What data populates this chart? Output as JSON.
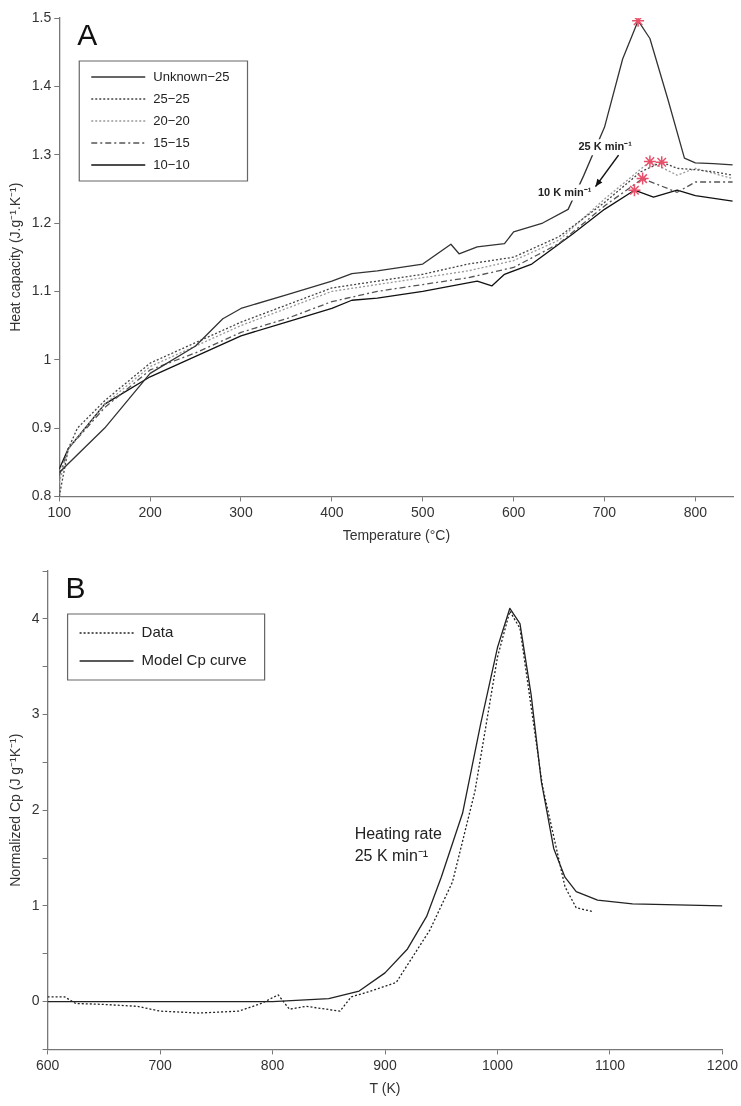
{
  "chart_data": [
    {
      "type": "line",
      "title": "A",
      "xlabel": "Temperature (°C)",
      "ylabel": "Heat capacity (J.g⁻¹.K⁻¹)",
      "xlim": [
        100,
        842
      ],
      "xticks": [
        100,
        200,
        300,
        400,
        500,
        600,
        700,
        800
      ],
      "ylim": [
        0.8,
        1.5
      ],
      "yticks": [
        0.8,
        0.9,
        1,
        1.1,
        1.2,
        1.3,
        1.4,
        1.5
      ],
      "legend": "top left",
      "marker": "none",
      "grid": false,
      "annotations": [
        "25 K min⁻¹",
        "10 K min⁻¹"
      ],
      "series": [
        {
          "name": "Unknown−25",
          "color": "#333333",
          "line_style": "solid",
          "x": [
            100,
            150,
            200,
            250,
            280,
            300,
            350,
            400,
            422,
            450,
            500,
            531,
            540,
            560,
            590,
            600,
            632,
            660,
            677,
            700,
            720,
            737,
            750,
            770,
            788,
            800,
            820,
            841
          ],
          "values": [
            0.835,
            0.9,
            0.98,
            1.02,
            1.06,
            1.075,
            1.095,
            1.115,
            1.126,
            1.13,
            1.14,
            1.169,
            1.155,
            1.165,
            1.17,
            1.187,
            1.2,
            1.22,
            1.269,
            1.34,
            1.44,
            1.496,
            1.47,
            1.38,
            1.295,
            1.288,
            1.287,
            1.285
          ]
        },
        {
          "name": "25−25",
          "color": "#444444",
          "line_style": "dotted",
          "x": [
            100,
            110,
            120,
            150,
            200,
            250,
            300,
            350,
            400,
            450,
            500,
            550,
            600,
            650,
            700,
            740,
            763,
            780,
            800,
            820,
            841
          ],
          "values": [
            0.8,
            0.87,
            0.9,
            0.94,
            0.995,
            1.025,
            1.055,
            1.08,
            1.105,
            1.115,
            1.125,
            1.14,
            1.15,
            1.18,
            1.23,
            1.275,
            1.289,
            1.28,
            1.278,
            1.275,
            1.27
          ]
        },
        {
          "name": "20−20",
          "color": "#999999",
          "line_style": "dotted",
          "x": [
            100,
            110,
            150,
            200,
            250,
            300,
            350,
            400,
            450,
            500,
            550,
            600,
            650,
            700,
            750,
            780,
            800,
            841
          ],
          "values": [
            0.82,
            0.87,
            0.935,
            0.99,
            1.02,
            1.05,
            1.075,
            1.1,
            1.11,
            1.12,
            1.13,
            1.145,
            1.175,
            1.235,
            1.29,
            1.27,
            1.28,
            1.265
          ]
        },
        {
          "name": "15−15",
          "color": "#555555",
          "line_style": "dashed",
          "x": [
            100,
            110,
            150,
            200,
            250,
            300,
            350,
            400,
            450,
            500,
            550,
            600,
            650,
            700,
            742,
            780,
            800,
            841
          ],
          "values": [
            0.83,
            0.87,
            0.93,
            0.985,
            1.01,
            1.04,
            1.06,
            1.085,
            1.1,
            1.11,
            1.12,
            1.135,
            1.17,
            1.225,
            1.265,
            1.245,
            1.26,
            1.26
          ]
        },
        {
          "name": "10−10",
          "color": "#111111",
          "line_style": "solid",
          "x": [
            100,
            110,
            150,
            200,
            250,
            300,
            350,
            400,
            422,
            450,
            500,
            560,
            576,
            590,
            620,
            665,
            700,
            733,
            754,
            780,
            800,
            841
          ],
          "values": [
            0.84,
            0.87,
            0.935,
            0.975,
            1.005,
            1.035,
            1.055,
            1.075,
            1.087,
            1.09,
            1.1,
            1.115,
            1.108,
            1.125,
            1.14,
            1.184,
            1.22,
            1.248,
            1.238,
            1.248,
            1.24,
            1.232
          ]
        },
        {
          "type": "scatter",
          "color": "#e8506a",
          "marker": "cross",
          "x": [
            737,
            763,
            750,
            742,
            733
          ],
          "values": [
            1.496,
            1.289,
            1.29,
            1.265,
            1.248
          ]
        }
      ]
    },
    {
      "type": "line",
      "title": "B",
      "xlabel": "T (K)",
      "ylabel": "Normalized Cp (J g⁻¹K⁻¹)",
      "xlim": [
        600,
        1200
      ],
      "xticks": [
        600,
        700,
        800,
        900,
        1000,
        1100,
        1200
      ],
      "ylim": [
        -0.5,
        4.5
      ],
      "yticks": [
        {
          "value": -0.5,
          "label": null
        },
        0,
        {
          "value": 0.5,
          "label": null
        },
        1,
        {
          "value": 1.5,
          "label": null
        },
        2,
        {
          "value": 2.5,
          "label": null
        },
        3,
        {
          "value": 3.5,
          "label": null
        },
        4,
        {
          "value": 4.5,
          "label": null
        }
      ],
      "legend": "top left",
      "marker": "none",
      "grid": false,
      "annotations": [
        "Heating rate\n25 K min⁻¹"
      ],
      "series": [
        {
          "name": "Data",
          "color": "#222222",
          "line_style": "dotted",
          "x": [
            600,
            615,
            625,
            650,
            680,
            700,
            735,
            770,
            790,
            805,
            815,
            830,
            860,
            870,
            885,
            910,
            940,
            960,
            980,
            1000,
            1011,
            1020,
            1040,
            1060,
            1070,
            1085
          ],
          "values": [
            0.05,
            0.05,
            -0.02,
            -0.03,
            -0.05,
            -0.1,
            -0.12,
            -0.1,
            -0.02,
            0.07,
            -0.08,
            -0.05,
            -0.1,
            0.05,
            0.1,
            0.2,
            0.75,
            1.25,
            2.2,
            3.6,
            4.08,
            3.9,
            2.25,
            1.2,
            0.98,
            0.94
          ]
        },
        {
          "name": "Model Cp curve",
          "color": "#222222",
          "line_style": "solid",
          "x": [
            600,
            700,
            800,
            850,
            877,
            900,
            920,
            937,
            950,
            969,
            985,
            1000,
            1011,
            1020,
            1030,
            1039,
            1050,
            1060,
            1070,
            1089,
            1120,
            1200
          ],
          "values": [
            0,
            0,
            0,
            0.03,
            0.11,
            0.3,
            0.55,
            0.89,
            1.3,
            1.97,
            2.9,
            3.7,
            4.11,
            3.95,
            3.2,
            2.3,
            1.6,
            1.3,
            1.15,
            1.06,
            1.02,
            1.0
          ]
        }
      ]
    }
  ]
}
